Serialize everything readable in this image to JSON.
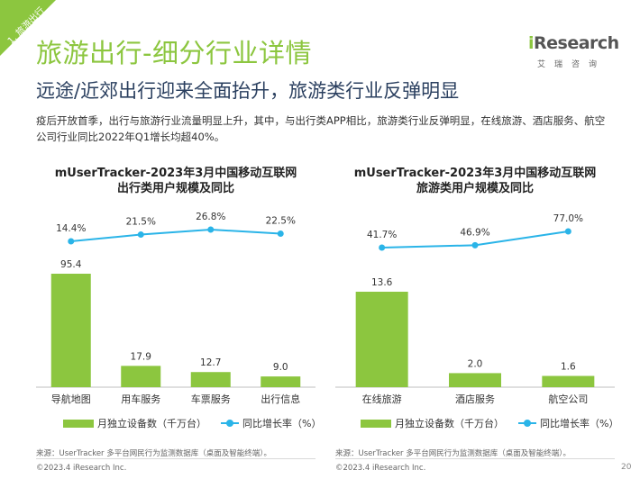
{
  "section_tag": "1. 旅游出行",
  "title": "旅游出行-细分行业详情",
  "subtitle": "远途/近郊出行迎来全面抬升，旅游类行业反弹明显",
  "description": "疫后开放首季，出行与旅游行业流量明显上升，其中，与出行类APP相比，旅游类行业反弹明显，在线旅游、酒店服务、航空公司行业同比2022年Q1增长均超40%。",
  "logo": {
    "word_prefix": "i",
    "word": "Research",
    "sub": "艾瑞咨询"
  },
  "chart_data": [
    {
      "type": "bar",
      "title": "mUserTracker-2023年3月中国移动互联网",
      "subtitle": "出行类用户规模及同比",
      "categories": [
        "导航地图",
        "用车服务",
        "车票服务",
        "出行信息"
      ],
      "series": [
        {
          "name": "月独立设备数（千万台）",
          "type": "bar",
          "values": [
            95.4,
            17.9,
            12.7,
            9.0
          ],
          "labels": [
            "95.4",
            "17.9",
            "12.7",
            "9.0"
          ]
        },
        {
          "name": "同比增长率（%）",
          "type": "line",
          "values": [
            14.4,
            21.5,
            26.8,
            22.5
          ],
          "labels": [
            "14.4%",
            "21.5%",
            "26.8%",
            "22.5%"
          ]
        }
      ],
      "colors": {
        "bar": "#8cc63f",
        "line": "#2ab4e8"
      }
    },
    {
      "type": "bar",
      "title": "mUserTracker-2023年3月中国移动互联网",
      "subtitle": "旅游类用户规模及同比",
      "categories": [
        "在线旅游",
        "酒店服务",
        "航空公司"
      ],
      "series": [
        {
          "name": "月独立设备数（千万台）",
          "type": "bar",
          "values": [
            13.6,
            2.0,
            1.6
          ],
          "labels": [
            "13.6",
            "2.0",
            "1.6"
          ]
        },
        {
          "name": "同比增长率（%）",
          "type": "line",
          "values": [
            41.7,
            46.9,
            77.0
          ],
          "labels": [
            "41.7%",
            "46.9%",
            "77.0%"
          ]
        }
      ],
      "colors": {
        "bar": "#8cc63f",
        "line": "#2ab4e8"
      }
    }
  ],
  "source": "来源：UserTracker 多平台网民行为监测数据库（桌面及智能终端）。",
  "copyright": "©2023.4 iResearch Inc.",
  "page_number": "20"
}
